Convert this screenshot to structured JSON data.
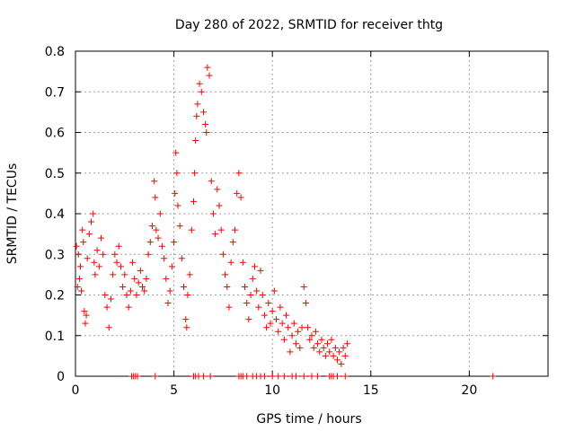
{
  "chart_data": {
    "type": "scatter",
    "title": "Day 280 of 2022, SRMTID for receiver thtg",
    "xlabel": "GPS time / hours",
    "ylabel": "SRMTID / TECUs",
    "xlim": [
      0,
      24
    ],
    "ylim": [
      0,
      0.8
    ],
    "xticks": [
      0,
      5,
      10,
      15,
      20
    ],
    "xtick_labels": [
      "0",
      "5",
      "10",
      "15",
      "20"
    ],
    "yticks": [
      0,
      0.1,
      0.2,
      0.3,
      0.4,
      0.5,
      0.6,
      0.7,
      0.8
    ],
    "ytick_labels": [
      "0",
      "0.1",
      "0.2",
      "0.3",
      "0.4",
      "0.5",
      "0.6",
      "0.7",
      "0.8"
    ],
    "grid": true,
    "marker": "+",
    "color": "#ff0000",
    "series": [
      {
        "name": "SRMTID",
        "points": [
          [
            0.05,
            0.32
          ],
          [
            0.1,
            0.22
          ],
          [
            0.15,
            0.3
          ],
          [
            0.2,
            0.24
          ],
          [
            0.25,
            0.27
          ],
          [
            0.3,
            0.21
          ],
          [
            0.35,
            0.36
          ],
          [
            0.4,
            0.33
          ],
          [
            0.45,
            0.16
          ],
          [
            0.5,
            0.13
          ],
          [
            0.55,
            0.15
          ],
          [
            0.6,
            0.29
          ],
          [
            0.7,
            0.35
          ],
          [
            0.8,
            0.38
          ],
          [
            0.9,
            0.4
          ],
          [
            0.95,
            0.28
          ],
          [
            1.0,
            0.25
          ],
          [
            1.1,
            0.31
          ],
          [
            1.2,
            0.27
          ],
          [
            1.3,
            0.34
          ],
          [
            1.4,
            0.3
          ],
          [
            1.5,
            0.2
          ],
          [
            1.6,
            0.17
          ],
          [
            1.7,
            0.12
          ],
          [
            1.8,
            0.19
          ],
          [
            1.9,
            0.25
          ],
          [
            2.0,
            0.3
          ],
          [
            2.1,
            0.28
          ],
          [
            2.2,
            0.32
          ],
          [
            2.3,
            0.27
          ],
          [
            2.4,
            0.22
          ],
          [
            2.5,
            0.25
          ],
          [
            2.6,
            0.2
          ],
          [
            2.7,
            0.17
          ],
          [
            2.8,
            0.21
          ],
          [
            2.9,
            0.28
          ],
          [
            3.0,
            0.24
          ],
          [
            3.1,
            0.2
          ],
          [
            3.2,
            0.23
          ],
          [
            3.3,
            0.26
          ],
          [
            3.4,
            0.22
          ],
          [
            3.5,
            0.21
          ],
          [
            3.6,
            0.24
          ],
          [
            3.7,
            0.3
          ],
          [
            3.8,
            0.33
          ],
          [
            3.9,
            0.37
          ],
          [
            4.0,
            0.48
          ],
          [
            4.05,
            0.44
          ],
          [
            4.1,
            0.36
          ],
          [
            4.2,
            0.34
          ],
          [
            4.3,
            0.4
          ],
          [
            4.4,
            0.32
          ],
          [
            4.5,
            0.29
          ],
          [
            4.6,
            0.24
          ],
          [
            4.7,
            0.18
          ],
          [
            4.8,
            0.21
          ],
          [
            4.9,
            0.27
          ],
          [
            5.0,
            0.33
          ],
          [
            5.05,
            0.45
          ],
          [
            5.1,
            0.55
          ],
          [
            5.15,
            0.5
          ],
          [
            5.2,
            0.42
          ],
          [
            5.3,
            0.37
          ],
          [
            5.4,
            0.29
          ],
          [
            5.5,
            0.22
          ],
          [
            5.6,
            0.14
          ],
          [
            5.65,
            0.12
          ],
          [
            5.7,
            0.2
          ],
          [
            5.8,
            0.25
          ],
          [
            5.9,
            0.36
          ],
          [
            6.0,
            0.43
          ],
          [
            6.05,
            0.5
          ],
          [
            6.1,
            0.58
          ],
          [
            6.15,
            0.64
          ],
          [
            6.2,
            0.67
          ],
          [
            6.3,
            0.72
          ],
          [
            6.4,
            0.7
          ],
          [
            6.5,
            0.65
          ],
          [
            6.6,
            0.62
          ],
          [
            6.65,
            0.6
          ],
          [
            6.7,
            0.76
          ],
          [
            6.8,
            0.74
          ],
          [
            6.9,
            0.48
          ],
          [
            7.0,
            0.4
          ],
          [
            7.1,
            0.35
          ],
          [
            7.2,
            0.46
          ],
          [
            7.3,
            0.42
          ],
          [
            7.4,
            0.36
          ],
          [
            7.5,
            0.3
          ],
          [
            7.6,
            0.25
          ],
          [
            7.7,
            0.22
          ],
          [
            7.8,
            0.17
          ],
          [
            7.9,
            0.28
          ],
          [
            8.0,
            0.33
          ],
          [
            8.1,
            0.36
          ],
          [
            8.2,
            0.45
          ],
          [
            8.3,
            0.5
          ],
          [
            8.4,
            0.44
          ],
          [
            8.5,
            0.28
          ],
          [
            8.6,
            0.22
          ],
          [
            8.7,
            0.18
          ],
          [
            8.8,
            0.14
          ],
          [
            8.9,
            0.2
          ],
          [
            9.0,
            0.24
          ],
          [
            9.1,
            0.27
          ],
          [
            9.2,
            0.21
          ],
          [
            9.3,
            0.17
          ],
          [
            9.4,
            0.26
          ],
          [
            9.5,
            0.2
          ],
          [
            9.6,
            0.15
          ],
          [
            9.7,
            0.12
          ],
          [
            9.8,
            0.18
          ],
          [
            9.9,
            0.13
          ],
          [
            10.0,
            0.16
          ],
          [
            10.1,
            0.21
          ],
          [
            10.2,
            0.14
          ],
          [
            10.3,
            0.11
          ],
          [
            10.4,
            0.17
          ],
          [
            10.5,
            0.13
          ],
          [
            10.6,
            0.09
          ],
          [
            10.7,
            0.15
          ],
          [
            10.8,
            0.12
          ],
          [
            10.9,
            0.06
          ],
          [
            11.0,
            0.1
          ],
          [
            11.1,
            0.13
          ],
          [
            11.2,
            0.08
          ],
          [
            11.3,
            0.11
          ],
          [
            11.4,
            0.07
          ],
          [
            11.5,
            0.12
          ],
          [
            11.6,
            0.22
          ],
          [
            11.7,
            0.18
          ],
          [
            11.8,
            0.12
          ],
          [
            11.9,
            0.09
          ],
          [
            12.0,
            0.1
          ],
          [
            12.1,
            0.07
          ],
          [
            12.2,
            0.11
          ],
          [
            12.3,
            0.08
          ],
          [
            12.4,
            0.06
          ],
          [
            12.5,
            0.09
          ],
          [
            12.6,
            0.07
          ],
          [
            12.7,
            0.05
          ],
          [
            12.8,
            0.08
          ],
          [
            12.9,
            0.06
          ],
          [
            13.0,
            0.09
          ],
          [
            13.1,
            0.05
          ],
          [
            13.2,
            0.07
          ],
          [
            13.3,
            0.04
          ],
          [
            13.4,
            0.06
          ],
          [
            13.5,
            0.03
          ],
          [
            13.6,
            0.07
          ],
          [
            13.7,
            0.05
          ],
          [
            13.8,
            0.08
          ],
          [
            2.85,
            0.0
          ],
          [
            2.95,
            0.0
          ],
          [
            3.05,
            0.0
          ],
          [
            3.15,
            0.0
          ],
          [
            4.05,
            0.0
          ],
          [
            6.0,
            0.0
          ],
          [
            6.1,
            0.0
          ],
          [
            6.25,
            0.0
          ],
          [
            6.5,
            0.0
          ],
          [
            6.85,
            0.0
          ],
          [
            8.3,
            0.0
          ],
          [
            8.4,
            0.0
          ],
          [
            8.5,
            0.0
          ],
          [
            8.7,
            0.0
          ],
          [
            9.0,
            0.0
          ],
          [
            9.2,
            0.0
          ],
          [
            9.4,
            0.0
          ],
          [
            9.6,
            0.0
          ],
          [
            10.0,
            0.0
          ],
          [
            10.3,
            0.0
          ],
          [
            10.6,
            0.0
          ],
          [
            11.0,
            0.0
          ],
          [
            11.2,
            0.0
          ],
          [
            11.6,
            0.0
          ],
          [
            12.0,
            0.0
          ],
          [
            12.3,
            0.0
          ],
          [
            12.9,
            0.0
          ],
          [
            13.0,
            0.0
          ],
          [
            13.1,
            0.0
          ],
          [
            13.3,
            0.0
          ],
          [
            13.7,
            0.0
          ],
          [
            21.2,
            0.0
          ]
        ]
      }
    ]
  }
}
